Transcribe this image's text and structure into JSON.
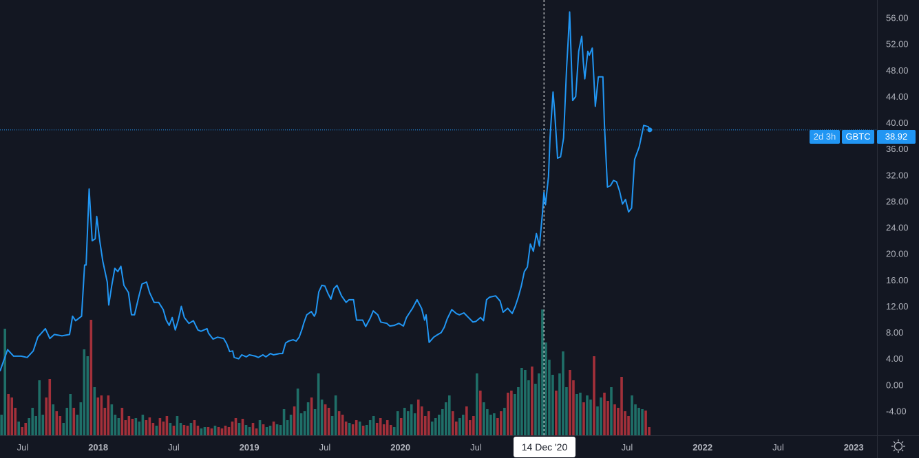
{
  "symbol": "GBTC",
  "last_price": "38.92",
  "countdown": "2d 3h",
  "crosshair_date": "14 Dec '20",
  "colors": {
    "background": "#131722",
    "line": "#2196f3",
    "up": "#1f6f68",
    "down": "#a3303a",
    "text": "#b2b5be"
  },
  "chart_data": {
    "type": "line",
    "title": "GBTC",
    "ylim": [
      -6,
      58
    ],
    "xlim": [
      2017.35,
      2023.42
    ],
    "y_ticks": [
      "56.00",
      "52.00",
      "48.00",
      "44.00",
      "40.00",
      "36.00",
      "32.00",
      "28.00",
      "24.00",
      "20.00",
      "16.00",
      "12.00",
      "8.00",
      "4.00",
      "0.00",
      "-4.00"
    ],
    "y_tick_values": [
      56,
      52,
      48,
      44,
      40,
      36,
      32,
      28,
      24,
      20,
      16,
      12,
      8,
      4,
      0,
      -4
    ],
    "x_ticks": [
      {
        "t": 2017.5,
        "label": "Jul",
        "bold": false
      },
      {
        "t": 2018.0,
        "label": "2018",
        "bold": true
      },
      {
        "t": 2018.5,
        "label": "Jul",
        "bold": false
      },
      {
        "t": 2019.0,
        "label": "2019",
        "bold": true
      },
      {
        "t": 2019.5,
        "label": "Jul",
        "bold": false
      },
      {
        "t": 2020.0,
        "label": "2020",
        "bold": true
      },
      {
        "t": 2020.5,
        "label": "Jul",
        "bold": false
      },
      {
        "t": 2021.5,
        "label": "Jul",
        "bold": false
      },
      {
        "t": 2022.0,
        "label": "2022",
        "bold": true
      },
      {
        "t": 2022.5,
        "label": "Jul",
        "bold": false
      },
      {
        "t": 2023.0,
        "label": "2023",
        "bold": true
      }
    ],
    "crosshair": {
      "t": 2020.95,
      "price": 38.92
    },
    "series": [
      {
        "name": "GBTC",
        "points": [
          [
            2017.35,
            2.1
          ],
          [
            2017.4,
            5.4
          ],
          [
            2017.44,
            4.4
          ],
          [
            2017.49,
            4.4
          ],
          [
            2017.53,
            4.2
          ],
          [
            2017.57,
            5.2
          ],
          [
            2017.6,
            7.3
          ],
          [
            2017.65,
            8.6
          ],
          [
            2017.68,
            7.1
          ],
          [
            2017.71,
            7.7
          ],
          [
            2017.76,
            7.5
          ],
          [
            2017.81,
            7.7
          ],
          [
            2017.83,
            10.5
          ],
          [
            2017.85,
            9.8
          ],
          [
            2017.89,
            10.5
          ],
          [
            2017.91,
            18.3
          ],
          [
            2017.92,
            18.3
          ],
          [
            2017.94,
            29.9
          ],
          [
            2017.96,
            22.0
          ],
          [
            2017.98,
            22.3
          ],
          [
            2017.99,
            25.7
          ],
          [
            2018.01,
            22.0
          ],
          [
            2018.03,
            18.9
          ],
          [
            2018.06,
            15.7
          ],
          [
            2018.07,
            12.2
          ],
          [
            2018.09,
            15.2
          ],
          [
            2018.11,
            17.8
          ],
          [
            2018.13,
            17.3
          ],
          [
            2018.15,
            18.1
          ],
          [
            2018.17,
            15.2
          ],
          [
            2018.2,
            14.1
          ],
          [
            2018.22,
            10.7
          ],
          [
            2018.24,
            10.7
          ],
          [
            2018.27,
            13.6
          ],
          [
            2018.29,
            15.4
          ],
          [
            2018.32,
            15.7
          ],
          [
            2018.34,
            14.1
          ],
          [
            2018.37,
            12.6
          ],
          [
            2018.4,
            12.6
          ],
          [
            2018.43,
            11.5
          ],
          [
            2018.45,
            9.9
          ],
          [
            2018.47,
            9.1
          ],
          [
            2018.49,
            10.3
          ],
          [
            2018.51,
            8.4
          ],
          [
            2018.53,
            9.9
          ],
          [
            2018.55,
            12.0
          ],
          [
            2018.57,
            10.3
          ],
          [
            2018.6,
            9.4
          ],
          [
            2018.63,
            9.8
          ],
          [
            2018.66,
            8.4
          ],
          [
            2018.68,
            8.2
          ],
          [
            2018.72,
            8.6
          ],
          [
            2018.73,
            7.9
          ],
          [
            2018.76,
            7.0
          ],
          [
            2018.79,
            7.3
          ],
          [
            2018.83,
            7.1
          ],
          [
            2018.85,
            6.3
          ],
          [
            2018.87,
            5.1
          ],
          [
            2018.89,
            5.2
          ],
          [
            2018.9,
            4.2
          ],
          [
            2018.93,
            4.0
          ],
          [
            2018.95,
            4.6
          ],
          [
            2018.98,
            4.3
          ],
          [
            2019.0,
            4.6
          ],
          [
            2019.04,
            4.4
          ],
          [
            2019.06,
            4.2
          ],
          [
            2019.09,
            4.6
          ],
          [
            2019.11,
            4.3
          ],
          [
            2019.14,
            4.8
          ],
          [
            2019.16,
            4.6
          ],
          [
            2019.2,
            4.8
          ],
          [
            2019.22,
            4.8
          ],
          [
            2019.24,
            6.4
          ],
          [
            2019.26,
            6.7
          ],
          [
            2019.29,
            6.9
          ],
          [
            2019.31,
            6.7
          ],
          [
            2019.33,
            7.3
          ],
          [
            2019.35,
            8.6
          ],
          [
            2019.36,
            9.4
          ],
          [
            2019.38,
            10.7
          ],
          [
            2019.41,
            11.2
          ],
          [
            2019.43,
            10.5
          ],
          [
            2019.44,
            11.0
          ],
          [
            2019.46,
            14.2
          ],
          [
            2019.48,
            15.2
          ],
          [
            2019.5,
            15.1
          ],
          [
            2019.52,
            14.0
          ],
          [
            2019.54,
            13.1
          ],
          [
            2019.56,
            14.7
          ],
          [
            2019.58,
            15.2
          ],
          [
            2019.61,
            13.6
          ],
          [
            2019.64,
            12.6
          ],
          [
            2019.66,
            13.0
          ],
          [
            2019.69,
            13.0
          ],
          [
            2019.71,
            9.9
          ],
          [
            2019.75,
            9.9
          ],
          [
            2019.77,
            8.9
          ],
          [
            2019.8,
            10.2
          ],
          [
            2019.82,
            11.3
          ],
          [
            2019.85,
            10.7
          ],
          [
            2019.87,
            9.6
          ],
          [
            2019.89,
            9.5
          ],
          [
            2019.91,
            9.4
          ],
          [
            2019.93,
            9.0
          ],
          [
            2019.96,
            9.1
          ],
          [
            2019.99,
            9.4
          ],
          [
            2020.02,
            9.0
          ],
          [
            2020.04,
            10.3
          ],
          [
            2020.06,
            11.0
          ],
          [
            2020.08,
            11.7
          ],
          [
            2020.11,
            13.0
          ],
          [
            2020.14,
            11.7
          ],
          [
            2020.16,
            9.9
          ],
          [
            2020.17,
            10.7
          ],
          [
            2020.19,
            6.5
          ],
          [
            2020.22,
            7.3
          ],
          [
            2020.24,
            7.6
          ],
          [
            2020.27,
            8.0
          ],
          [
            2020.29,
            8.8
          ],
          [
            2020.31,
            10.1
          ],
          [
            2020.34,
            11.5
          ],
          [
            2020.37,
            10.9
          ],
          [
            2020.39,
            10.7
          ],
          [
            2020.42,
            11.0
          ],
          [
            2020.45,
            10.3
          ],
          [
            2020.48,
            9.6
          ],
          [
            2020.5,
            9.7
          ],
          [
            2020.53,
            10.3
          ],
          [
            2020.55,
            9.8
          ],
          [
            2020.57,
            13.0
          ],
          [
            2020.59,
            13.4
          ],
          [
            2020.63,
            13.6
          ],
          [
            2020.66,
            12.8
          ],
          [
            2020.68,
            11.1
          ],
          [
            2020.71,
            11.7
          ],
          [
            2020.74,
            10.9
          ],
          [
            2020.76,
            12.0
          ],
          [
            2020.78,
            13.4
          ],
          [
            2020.8,
            15.1
          ],
          [
            2020.82,
            17.3
          ],
          [
            2020.84,
            18.0
          ],
          [
            2020.86,
            21.5
          ],
          [
            2020.88,
            20.4
          ],
          [
            2020.9,
            23.1
          ],
          [
            2020.92,
            21.2
          ],
          [
            2020.94,
            26.2
          ],
          [
            2020.95,
            29.4
          ],
          [
            2020.96,
            27.5
          ],
          [
            2020.98,
            31.8
          ],
          [
            2020.99,
            37.7
          ],
          [
            2021.01,
            44.7
          ],
          [
            2021.02,
            41.9
          ],
          [
            2021.04,
            34.6
          ],
          [
            2021.06,
            34.8
          ],
          [
            2021.08,
            37.7
          ],
          [
            2021.1,
            48.4
          ],
          [
            2021.11,
            52.4
          ],
          [
            2021.12,
            56.9
          ],
          [
            2021.14,
            43.4
          ],
          [
            2021.16,
            44.0
          ],
          [
            2021.18,
            50.9
          ],
          [
            2021.2,
            53.2
          ],
          [
            2021.21,
            49.3
          ],
          [
            2021.22,
            46.7
          ],
          [
            2021.24,
            50.9
          ],
          [
            2021.25,
            50.3
          ],
          [
            2021.27,
            51.4
          ],
          [
            2021.29,
            42.5
          ],
          [
            2021.31,
            47.0
          ],
          [
            2021.34,
            47.0
          ],
          [
            2021.35,
            39.8
          ],
          [
            2021.37,
            30.2
          ],
          [
            2021.39,
            30.4
          ],
          [
            2021.41,
            31.2
          ],
          [
            2021.43,
            31.0
          ],
          [
            2021.45,
            29.6
          ],
          [
            2021.47,
            27.6
          ],
          [
            2021.49,
            28.3
          ],
          [
            2021.51,
            26.4
          ],
          [
            2021.53,
            27.0
          ],
          [
            2021.55,
            34.4
          ],
          [
            2021.58,
            36.3
          ],
          [
            2021.6,
            38.5
          ],
          [
            2021.61,
            39.6
          ],
          [
            2021.64,
            39.4
          ],
          [
            2021.65,
            38.92
          ]
        ]
      }
    ],
    "volume": {
      "start": 2017.36,
      "step": 0.0228,
      "values": [
        30,
        155,
        60,
        55,
        40,
        20,
        12,
        18,
        25,
        40,
        28,
        80,
        30,
        55,
        82,
        45,
        35,
        28,
        18,
        40,
        60,
        40,
        30,
        48,
        125,
        115,
        168,
        70,
        55,
        58,
        40,
        58,
        45,
        30,
        25,
        40,
        22,
        28,
        24,
        25,
        20,
        30,
        22,
        26,
        18,
        14,
        25,
        20,
        28,
        18,
        14,
        28,
        18,
        15,
        14,
        18,
        22,
        14,
        10,
        12,
        12,
        10,
        14,
        12,
        10,
        14,
        12,
        20,
        25,
        18,
        24,
        15,
        12,
        18,
        10,
        22,
        16,
        12,
        14,
        20,
        16,
        15,
        38,
        22,
        30,
        42,
        68,
        32,
        35,
        48,
        55,
        38,
        90,
        52,
        45,
        40,
        28,
        58,
        35,
        30,
        20,
        18,
        16,
        22,
        20,
        14,
        15,
        22,
        28,
        18,
        25,
        16,
        22,
        15,
        12,
        35,
        25,
        40,
        35,
        45,
        32,
        52,
        42,
        28,
        35,
        20,
        25,
        30,
        38,
        48,
        58,
        35,
        20,
        25,
        30,
        42,
        22,
        28,
        90,
        65,
        48,
        38,
        30,
        32,
        25,
        35,
        40,
        62,
        65,
        60,
        70,
        98,
        95,
        80,
        100,
        75,
        90,
        183,
        135,
        110,
        88,
        65,
        90,
        122,
        70,
        95,
        80,
        60,
        62,
        48,
        58,
        52,
        115,
        42,
        55,
        62,
        50,
        70,
        45,
        40,
        85,
        35,
        28,
        58,
        45,
        40,
        38,
        36,
        12
      ]
    }
  }
}
